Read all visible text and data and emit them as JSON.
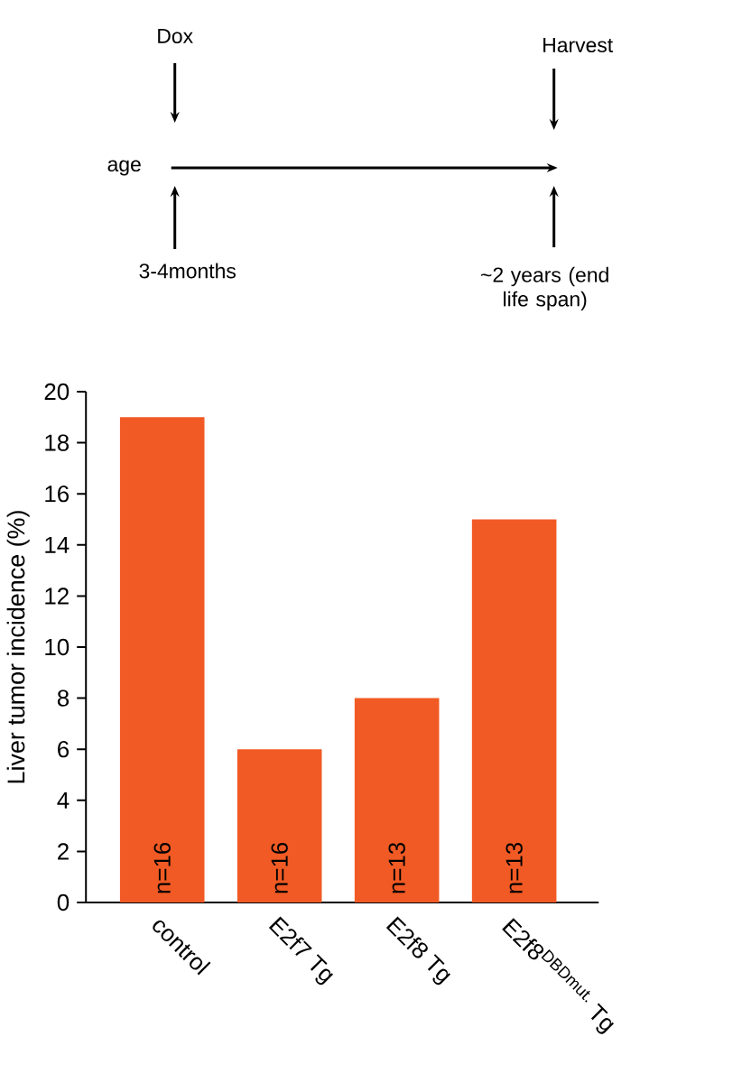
{
  "chart_data": {
    "type": "bar",
    "ylabel": "Liver tumor incidence (%)",
    "categories": [
      "control",
      "E2f7 Tg",
      "E2f8 Tg",
      "E2f8$^{DBDmut.}$ Tg"
    ],
    "values": [
      19,
      6,
      8,
      15
    ],
    "color": "#f15a24",
    "ylim": [
      0,
      20
    ],
    "yticks": [
      0,
      2,
      4,
      6,
      8,
      10,
      12,
      14,
      16,
      18,
      20
    ],
    "annotations": [
      "n=16",
      "n=16",
      "n=13",
      "n=13",
      "Dox",
      "Harvest",
      "age",
      "3-4months",
      "~2 years (end life span)"
    ]
  }
}
